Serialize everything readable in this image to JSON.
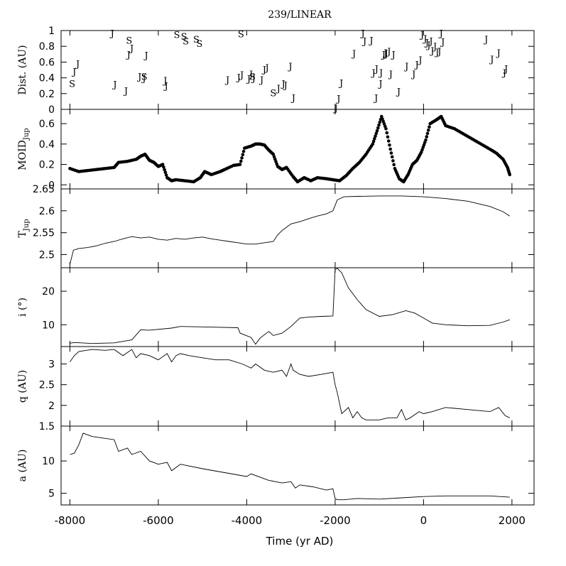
{
  "figure": {
    "title": "239/LINEAR",
    "x_label": "Time (yr AD)",
    "x_ticks": [
      -8000,
      -6000,
      -4000,
      -2000,
      0,
      2000
    ],
    "x_range": [
      -8200,
      2500
    ]
  },
  "chart_data": [
    {
      "id": "dist",
      "type": "scatter",
      "ylabel": "Dist. (AU)",
      "ylim": [
        0,
        1
      ],
      "y_ticks": [
        0,
        0.2,
        0.4,
        0.6,
        0.8,
        1
      ],
      "y_tick_labels": [
        "0",
        "0.2",
        "0.4",
        "0.6",
        "0.8",
        "1"
      ],
      "series": [
        {
          "name": "J",
          "marker": "J",
          "x": [
            -7040,
            -7900,
            -7820,
            -6980,
            -6730,
            -6670,
            -6600,
            -6270,
            -6420,
            -6320,
            -5840,
            -5820,
            -4430,
            -4180,
            -4110,
            -3950,
            -3900,
            -3840,
            -3660,
            -3600,
            -3540,
            -3280,
            -3170,
            -3120,
            -3010,
            -2940,
            -1980,
            -1920,
            -1860,
            -1370,
            -1330,
            -1180,
            -1130,
            -1060,
            -960,
            -900,
            -860,
            -780,
            -680,
            -1570,
            -1070,
            -970,
            -840,
            -740,
            -560,
            -380,
            -220,
            -150,
            -70,
            -30,
            40,
            80,
            120,
            170,
            200,
            260,
            310,
            360,
            400,
            440,
            1420,
            1550,
            1700,
            1830,
            1870
          ],
          "y": [
            0.97,
            0.48,
            0.58,
            0.32,
            0.24,
            0.7,
            0.78,
            0.69,
            0.42,
            0.4,
            0.37,
            0.3,
            0.38,
            0.41,
            0.44,
            0.39,
            0.45,
            0.4,
            0.38,
            0.51,
            0.53,
            0.27,
            0.33,
            0.31,
            0.55,
            0.15,
            0.02,
            0.14,
            0.34,
            0.97,
            0.87,
            0.88,
            0.47,
            0.52,
            0.47,
            0.7,
            0.72,
            0.74,
            0.7,
            0.71,
            0.15,
            0.33,
            0.71,
            0.45,
            0.23,
            0.55,
            0.45,
            0.57,
            0.63,
            0.95,
            0.9,
            0.85,
            0.82,
            0.87,
            0.75,
            0.8,
            0.73,
            0.74,
            0.97,
            0.86,
            0.89,
            0.64,
            0.72,
            0.47,
            0.52
          ]
        },
        {
          "name": "S",
          "marker": "S",
          "x": [
            -7950,
            -6660,
            -6320,
            -5580,
            -5420,
            -5380,
            -5140,
            -5070,
            -4130,
            -3870,
            -3400
          ],
          "y": [
            0.33,
            0.88,
            0.42,
            0.95,
            0.93,
            0.87,
            0.89,
            0.84,
            0.96,
            0.42,
            0.21
          ]
        }
      ]
    },
    {
      "id": "moid",
      "type": "scatter",
      "ylabel": "MOID_Jup",
      "ylabel_main": "MOID",
      "ylabel_sub": "Jup",
      "ylim": [
        -0.04,
        0.74
      ],
      "y_ticks": [
        0,
        0.2,
        0.4,
        0.6
      ],
      "y_tick_labels": [
        "0",
        "0.2",
        "0.4",
        "0.6"
      ],
      "x": [
        -8000,
        -7800,
        -7600,
        -7400,
        -7200,
        -7000,
        -6900,
        -6700,
        -6500,
        -6400,
        -6300,
        -6200,
        -6100,
        -6000,
        -5900,
        -5800,
        -5700,
        -5600,
        -5400,
        -5200,
        -5050,
        -4950,
        -4800,
        -4600,
        -4500,
        -4300,
        -4150,
        -4050,
        -3900,
        -3800,
        -3700,
        -3600,
        -3500,
        -3400,
        -3300,
        -3200,
        -3100,
        -2950,
        -2850,
        -2700,
        -2550,
        -2400,
        -2200,
        -2050,
        -1900,
        -1750,
        -1600,
        -1450,
        -1300,
        -1150,
        -1050,
        -950,
        -850,
        -750,
        -650,
        -550,
        -450,
        -350,
        -250,
        -150,
        -50,
        50,
        150,
        300,
        400,
        500,
        700,
        900,
        1100,
        1300,
        1500,
        1650,
        1800,
        1900,
        1950
      ],
      "y": [
        0.16,
        0.13,
        0.14,
        0.15,
        0.16,
        0.17,
        0.22,
        0.23,
        0.25,
        0.28,
        0.3,
        0.24,
        0.22,
        0.18,
        0.2,
        0.07,
        0.04,
        0.05,
        0.04,
        0.03,
        0.07,
        0.13,
        0.1,
        0.13,
        0.15,
        0.19,
        0.2,
        0.36,
        0.38,
        0.4,
        0.4,
        0.39,
        0.34,
        0.3,
        0.18,
        0.15,
        0.17,
        0.08,
        0.03,
        0.07,
        0.04,
        0.07,
        0.06,
        0.05,
        0.04,
        0.09,
        0.16,
        0.22,
        0.3,
        0.4,
        0.53,
        0.67,
        0.55,
        0.35,
        0.16,
        0.06,
        0.03,
        0.1,
        0.2,
        0.24,
        0.32,
        0.44,
        0.6,
        0.64,
        0.67,
        0.58,
        0.55,
        0.5,
        0.45,
        0.4,
        0.35,
        0.31,
        0.25,
        0.17,
        0.1
      ]
    },
    {
      "id": "tjup",
      "type": "line",
      "ylabel": "T_Jup",
      "ylabel_main": "T",
      "ylabel_sub": "Jup",
      "ylim": [
        2.47,
        2.65
      ],
      "y_ticks": [
        2.5,
        2.55,
        2.6,
        2.65
      ],
      "y_tick_labels": [
        "2.5",
        "2.55",
        "2.6",
        "2.65"
      ],
      "x": [
        -8000,
        -7920,
        -7800,
        -7600,
        -7400,
        -7200,
        -7000,
        -6800,
        -6600,
        -6400,
        -6200,
        -6000,
        -5800,
        -5600,
        -5400,
        -5200,
        -5000,
        -4800,
        -4600,
        -4400,
        -4200,
        -4000,
        -3800,
        -3600,
        -3400,
        -3300,
        -3200,
        -3000,
        -2800,
        -2600,
        -2400,
        -2200,
        -2050,
        -1950,
        -1800,
        -1500,
        -1000,
        -500,
        0,
        500,
        1000,
        1500,
        1800,
        1950
      ],
      "y": [
        2.478,
        2.51,
        2.514,
        2.516,
        2.52,
        2.526,
        2.53,
        2.536,
        2.541,
        2.538,
        2.54,
        2.535,
        2.533,
        2.537,
        2.535,
        2.538,
        2.54,
        2.536,
        2.533,
        2.53,
        2.527,
        2.524,
        2.524,
        2.527,
        2.53,
        2.545,
        2.555,
        2.57,
        2.575,
        2.582,
        2.588,
        2.593,
        2.6,
        2.625,
        2.632,
        2.633,
        2.634,
        2.634,
        2.632,
        2.628,
        2.622,
        2.61,
        2.598,
        2.588
      ]
    },
    {
      "id": "inc",
      "type": "line",
      "ylabel": "i (°)",
      "ylim": [
        3.5,
        27
      ],
      "y_ticks": [
        10,
        20
      ],
      "y_tick_labels": [
        "10",
        "20"
      ],
      "x": [
        -8000,
        -7900,
        -7500,
        -7000,
        -6600,
        -6400,
        -6200,
        -5700,
        -5500,
        -4800,
        -4200,
        -4150,
        -3900,
        -3800,
        -3700,
        -3500,
        -3400,
        -3200,
        -3000,
        -2800,
        -2600,
        -2300,
        -2050,
        -2000,
        -1950,
        -1850,
        -1700,
        -1500,
        -1300,
        -1000,
        -700,
        -400,
        -200,
        0,
        200,
        500,
        1000,
        1500,
        1800,
        1950
      ],
      "y": [
        4.5,
        4.7,
        4.4,
        4.6,
        5.5,
        8.5,
        8.4,
        9.0,
        9.5,
        9.3,
        9.1,
        7.5,
        6.2,
        4.2,
        6.0,
        8.0,
        6.8,
        7.5,
        9.5,
        12.0,
        12.3,
        12.5,
        12.6,
        26.5,
        26.8,
        25.5,
        21.0,
        17.5,
        14.5,
        12.5,
        13.0,
        14.2,
        13.5,
        12.0,
        10.5,
        10.0,
        9.7,
        9.8,
        10.8,
        11.5
      ]
    },
    {
      "id": "q",
      "type": "line",
      "ylabel": "q (AU)",
      "ylim": [
        1.5,
        3.42
      ],
      "y_ticks": [
        1.5,
        2,
        2.5,
        3
      ],
      "y_tick_labels": [
        "1.5",
        "2",
        "2.5",
        "3"
      ],
      "x": [
        -8000,
        -7900,
        -7800,
        -7500,
        -7200,
        -7000,
        -6800,
        -6600,
        -6500,
        -6400,
        -6200,
        -6000,
        -5800,
        -5700,
        -5600,
        -5500,
        -5300,
        -5000,
        -4700,
        -4400,
        -4100,
        -4000,
        -3900,
        -3800,
        -3600,
        -3400,
        -3200,
        -3100,
        -3000,
        -2950,
        -2800,
        -2600,
        -2300,
        -2050,
        -2000,
        -1950,
        -1850,
        -1700,
        -1600,
        -1500,
        -1400,
        -1300,
        -1000,
        -800,
        -600,
        -500,
        -400,
        -300,
        -100,
        0,
        200,
        500,
        1000,
        1500,
        1700,
        1850,
        1950
      ],
      "y": [
        3.05,
        3.2,
        3.3,
        3.35,
        3.33,
        3.35,
        3.2,
        3.35,
        3.15,
        3.25,
        3.2,
        3.1,
        3.25,
        3.05,
        3.2,
        3.25,
        3.2,
        3.15,
        3.1,
        3.1,
        3.0,
        2.95,
        2.9,
        3.0,
        2.85,
        2.8,
        2.85,
        2.7,
        3.0,
        2.85,
        2.75,
        2.7,
        2.75,
        2.8,
        2.5,
        2.3,
        1.8,
        1.95,
        1.7,
        1.85,
        1.7,
        1.65,
        1.65,
        1.7,
        1.7,
        1.9,
        1.65,
        1.7,
        1.85,
        1.8,
        1.85,
        1.95,
        1.9,
        1.85,
        1.95,
        1.75,
        1.7
      ]
    },
    {
      "id": "a",
      "type": "line",
      "ylabel": "a (AU)",
      "ylim": [
        3.2,
        15.4
      ],
      "y_ticks": [
        5,
        10
      ],
      "y_tick_labels": [
        "5",
        "10"
      ],
      "x": [
        -8000,
        -7900,
        -7800,
        -7700,
        -7500,
        -7200,
        -7000,
        -6900,
        -6700,
        -6600,
        -6400,
        -6200,
        -6000,
        -5800,
        -5700,
        -5500,
        -5000,
        -4500,
        -4000,
        -3900,
        -3500,
        -3200,
        -3000,
        -2900,
        -2800,
        -2500,
        -2200,
        -2050,
        -2000,
        -1950,
        -1800,
        -1500,
        -1000,
        -500,
        0,
        500,
        1000,
        1500,
        1950
      ],
      "y": [
        11.0,
        11.2,
        12.5,
        14.3,
        13.8,
        13.5,
        13.3,
        11.5,
        12.0,
        11.0,
        11.5,
        10.0,
        9.5,
        9.8,
        8.5,
        9.5,
        8.8,
        8.2,
        7.6,
        8.0,
        7.0,
        6.6,
        6.8,
        5.8,
        6.3,
        6.0,
        5.5,
        5.7,
        4.2,
        4.0,
        4.0,
        4.2,
        4.1,
        4.3,
        4.5,
        4.6,
        4.6,
        4.6,
        4.4
      ]
    }
  ]
}
